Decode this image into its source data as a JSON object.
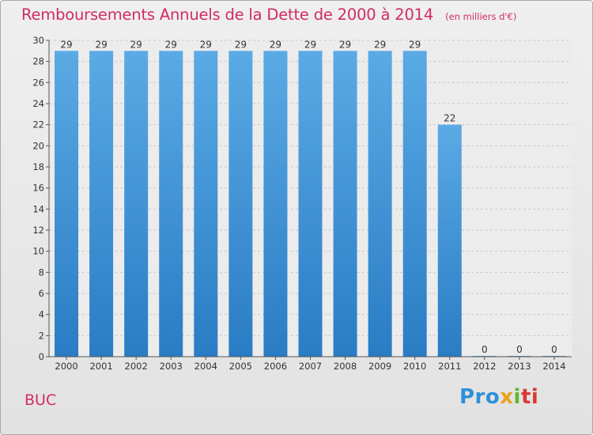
{
  "title": "Remboursements Annuels de la Dette de 2000 à 2014",
  "subtitle": "(en milliers d'€)",
  "commune": "BUC",
  "logo": {
    "p1": "Pro",
    "p2": "x",
    "p3": "i",
    "p4": "ti"
  },
  "colors": {
    "accent": "#d02d5e",
    "bar_top": "#5aaae5",
    "bar_bottom": "#2a7cc4"
  },
  "chart_data": {
    "type": "bar",
    "title": "Remboursements Annuels de la Dette de 2000 à 2014",
    "subtitle": "(en milliers d'€)",
    "categories": [
      "2000",
      "2001",
      "2002",
      "2003",
      "2004",
      "2005",
      "2006",
      "2007",
      "2008",
      "2009",
      "2010",
      "2011",
      "2012",
      "2013",
      "2014"
    ],
    "values": [
      29,
      29,
      29,
      29,
      29,
      29,
      29,
      29,
      29,
      29,
      29,
      22,
      0,
      0,
      0
    ],
    "ylim": [
      0,
      30
    ],
    "yticks": [
      0,
      2,
      4,
      6,
      8,
      10,
      12,
      14,
      16,
      18,
      20,
      22,
      24,
      26,
      28,
      30
    ],
    "grid": true,
    "xlabel": "",
    "ylabel": ""
  }
}
